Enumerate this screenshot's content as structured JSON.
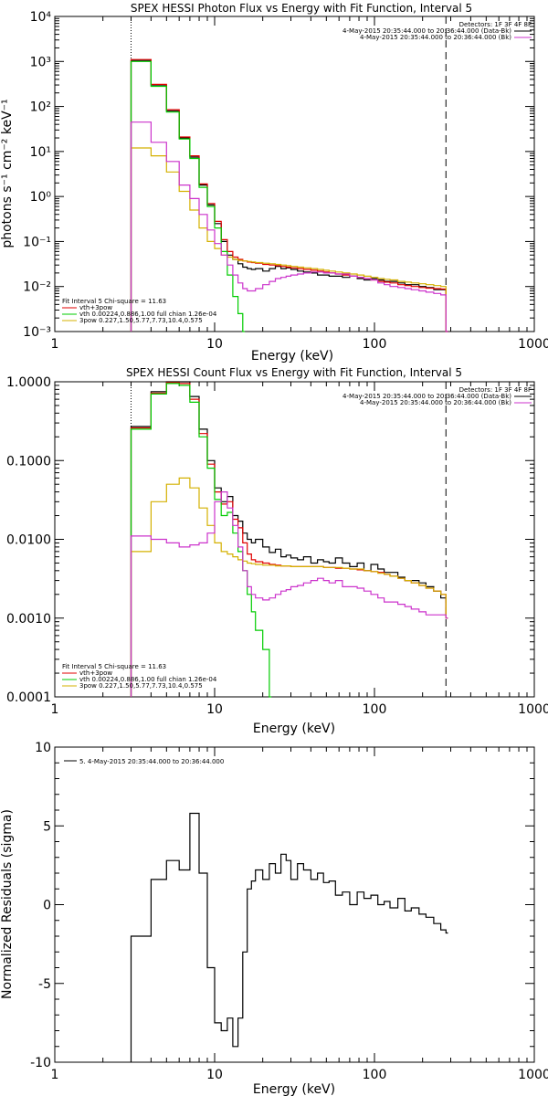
{
  "chart_data": [
    {
      "type": "line",
      "title": "SPEX HESSI Photon Flux vs Energy with Fit Function, Interval 5",
      "xlabel": "Energy (keV)",
      "ylabel": "photons s⁻¹ cm⁻² keV⁻¹",
      "x_scale": "log",
      "y_scale": "log",
      "xlim": [
        1,
        1000
      ],
      "ylim": [
        0.001,
        10000
      ],
      "x_ticks": [
        "1",
        "10",
        "100",
        "1000"
      ],
      "y_ticks": [
        "10⁻³",
        "10⁻²",
        "10⁻¹",
        "10⁰",
        "10¹",
        "10²",
        "10³",
        "10⁴"
      ],
      "legend_top_right": {
        "detectors": "Detectors: 1F 3F 4F 8F",
        "lines": [
          {
            "text": "4-May-2015 20:35:44.000 to 20:36:44.000 (Data-Bk)",
            "color": "#000000"
          },
          {
            "text": "4-May-2015 20:35:44.000 to 20:36:44.000 (Bk)",
            "color": "#cc33cc"
          }
        ]
      },
      "legend_bottom_left": {
        "header": "Fit Interval 5   Chi-square = 11.63",
        "lines": [
          {
            "text": "vth+3pow",
            "color": "#e00000"
          },
          {
            "text": "vth 0.00224,0.886,1.00  full chian 1.26e-04",
            "color": "#00cc00"
          },
          {
            "text": "3pow 0.227,1.50,5.77,7.73,10.4,0.575",
            "color": "#d4b000"
          }
        ]
      },
      "vlines": [
        3,
        280
      ],
      "series": [
        {
          "color": "#000000",
          "x": [
            3,
            4,
            5,
            6,
            7,
            8,
            9,
            10,
            11,
            12,
            13,
            14,
            15,
            16,
            17,
            18,
            20,
            22,
            24,
            26,
            28,
            30,
            33,
            36,
            40,
            44,
            48,
            52,
            57,
            63,
            70,
            78,
            86,
            95,
            105,
            115,
            125,
            140,
            155,
            170,
            190,
            210,
            235,
            260,
            280
          ],
          "values": [
            1050,
            290,
            80,
            20,
            7.5,
            1.8,
            0.65,
            0.25,
            0.1,
            0.05,
            0.04,
            0.032,
            0.027,
            0.025,
            0.024,
            0.025,
            0.022,
            0.025,
            0.028,
            0.025,
            0.026,
            0.024,
            0.022,
            0.021,
            0.02,
            0.018,
            0.018,
            0.017,
            0.017,
            0.016,
            0.017,
            0.015,
            0.014,
            0.015,
            0.014,
            0.013,
            0.013,
            0.012,
            0.011,
            0.011,
            0.01,
            0.0095,
            0.0085,
            0.0085,
            0.001
          ]
        },
        {
          "color": "#e00000",
          "x": [
            3,
            4,
            5,
            6,
            7,
            8,
            9,
            10,
            11,
            12,
            13,
            14,
            15,
            16,
            17,
            18,
            20,
            22,
            24,
            26,
            28,
            30,
            33,
            36,
            40,
            44,
            48,
            52,
            57,
            63,
            70,
            78,
            86,
            95,
            105,
            115,
            125,
            140,
            155,
            170,
            190,
            210,
            235,
            260,
            280
          ],
          "values": [
            1100,
            310,
            85,
            21,
            8,
            1.9,
            0.7,
            0.28,
            0.11,
            0.06,
            0.045,
            0.04,
            0.037,
            0.035,
            0.034,
            0.033,
            0.031,
            0.03,
            0.029,
            0.028,
            0.027,
            0.026,
            0.025,
            0.024,
            0.023,
            0.022,
            0.021,
            0.02,
            0.019,
            0.018,
            0.017,
            0.016,
            0.015,
            0.014,
            0.013,
            0.0125,
            0.012,
            0.011,
            0.0105,
            0.01,
            0.0095,
            0.0092,
            0.009,
            0.0088,
            0.001
          ]
        },
        {
          "color": "#00cc00",
          "x": [
            3,
            4,
            5,
            6,
            7,
            8,
            9,
            10,
            11,
            12,
            13,
            14,
            15
          ],
          "values": [
            1000,
            280,
            75,
            19,
            7,
            1.6,
            0.6,
            0.2,
            0.06,
            0.018,
            0.006,
            0.0025,
            0.001
          ]
        },
        {
          "color": "#d4b000",
          "x": [
            3,
            4,
            5,
            6,
            7,
            8,
            9,
            10,
            11,
            12,
            13,
            14,
            15,
            16,
            17,
            18,
            20,
            22,
            24,
            26,
            28,
            30,
            33,
            36,
            40,
            44,
            48,
            52,
            57,
            63,
            70,
            78,
            86,
            95,
            105,
            115,
            125,
            140,
            155,
            170,
            190,
            210,
            235,
            260,
            280
          ],
          "values": [
            12,
            8,
            3.5,
            1.3,
            0.5,
            0.2,
            0.1,
            0.07,
            0.05,
            0.045,
            0.04,
            0.038,
            0.037,
            0.036,
            0.035,
            0.034,
            0.033,
            0.032,
            0.031,
            0.03,
            0.029,
            0.028,
            0.027,
            0.026,
            0.025,
            0.024,
            0.023,
            0.022,
            0.021,
            0.02,
            0.019,
            0.018,
            0.017,
            0.016,
            0.015,
            0.0145,
            0.014,
            0.013,
            0.0125,
            0.012,
            0.0115,
            0.011,
            0.0105,
            0.01,
            0.001
          ]
        },
        {
          "color": "#cc33cc",
          "x": [
            3,
            4,
            5,
            6,
            7,
            8,
            9,
            10,
            11,
            12,
            13,
            14,
            15,
            16,
            17,
            18,
            20,
            22,
            24,
            26,
            28,
            30,
            33,
            36,
            40,
            44,
            48,
            52,
            57,
            63,
            70,
            78,
            86,
            95,
            105,
            115,
            125,
            140,
            155,
            170,
            190,
            210,
            235,
            260,
            280
          ],
          "values": [
            45,
            16,
            6,
            1.8,
            0.9,
            0.4,
            0.18,
            0.09,
            0.05,
            0.03,
            0.018,
            0.012,
            0.009,
            0.008,
            0.008,
            0.009,
            0.011,
            0.013,
            0.015,
            0.016,
            0.017,
            0.018,
            0.019,
            0.02,
            0.021,
            0.021,
            0.02,
            0.02,
            0.019,
            0.019,
            0.017,
            0.016,
            0.015,
            0.014,
            0.012,
            0.011,
            0.01,
            0.0095,
            0.009,
            0.0085,
            0.008,
            0.0075,
            0.007,
            0.0065,
            0.001
          ]
        }
      ]
    },
    {
      "type": "line",
      "title": "SPEX HESSI Count Flux vs Energy with Fit Function, Interval 5",
      "xlabel": "Energy (keV)",
      "ylabel": "",
      "x_scale": "log",
      "y_scale": "log",
      "xlim": [
        1,
        1000
      ],
      "ylim": [
        0.0001,
        1.0
      ],
      "x_ticks": [
        "1",
        "10",
        "100",
        "1000"
      ],
      "y_ticks": [
        "0.0001",
        "0.0010",
        "0.0100",
        "0.1000",
        "1.0000"
      ],
      "legend_top_right": {
        "detectors": "Detectors: 1F 3F 4F 8F",
        "lines": [
          {
            "text": "4-May-2015 20:35:44.000 to 20:36:44.000 (Data-Bk)",
            "color": "#000000"
          },
          {
            "text": "4-May-2015 20:35:44.000 to 20:36:44.000 (Bk)",
            "color": "#cc33cc"
          }
        ]
      },
      "legend_bottom_left": {
        "header": "Fit Interval 5   Chi-square = 11.63",
        "lines": [
          {
            "text": "vth+3pow",
            "color": "#e00000"
          },
          {
            "text": "vth 0.00224,0.886,1.00  full chian 1.26e-04",
            "color": "#00cc00"
          },
          {
            "text": "3pow 0.227,1.50,5.77,7.73,10.4,0.575",
            "color": "#d4b000"
          }
        ]
      },
      "vlines": [
        3,
        280
      ],
      "series": [
        {
          "color": "#000000",
          "x": [
            3,
            4,
            5,
            6,
            7,
            8,
            9,
            10,
            11,
            12,
            13,
            14,
            15,
            16,
            17,
            18,
            20,
            22,
            24,
            26,
            28,
            30,
            33,
            36,
            40,
            44,
            48,
            52,
            57,
            63,
            70,
            78,
            86,
            95,
            105,
            115,
            125,
            140,
            155,
            170,
            190,
            210,
            235,
            260,
            280
          ],
          "values": [
            0.27,
            0.75,
            1.0,
            1.0,
            0.65,
            0.25,
            0.1,
            0.045,
            0.03,
            0.035,
            0.02,
            0.017,
            0.012,
            0.01,
            0.009,
            0.01,
            0.008,
            0.0068,
            0.0075,
            0.006,
            0.0063,
            0.0058,
            0.0055,
            0.006,
            0.005,
            0.0055,
            0.0052,
            0.005,
            0.0058,
            0.005,
            0.0045,
            0.005,
            0.004,
            0.0048,
            0.0042,
            0.0038,
            0.0038,
            0.0033,
            0.003,
            0.003,
            0.0028,
            0.0025,
            0.0022,
            0.0018,
            0.001
          ]
        },
        {
          "color": "#e00000",
          "x": [
            3,
            4,
            5,
            6,
            7,
            8,
            9,
            10,
            11,
            12,
            13,
            14,
            15,
            16,
            17,
            18,
            20,
            22,
            24,
            26,
            28,
            30,
            33,
            36,
            40,
            44,
            48,
            52,
            57,
            63,
            70,
            78,
            86,
            95,
            105,
            115,
            125,
            140,
            155,
            170,
            190,
            210,
            235,
            260,
            280
          ],
          "values": [
            0.26,
            0.72,
            0.98,
            0.95,
            0.6,
            0.22,
            0.09,
            0.04,
            0.028,
            0.03,
            0.018,
            0.014,
            0.009,
            0.0065,
            0.0055,
            0.0052,
            0.005,
            0.0048,
            0.0047,
            0.0046,
            0.0046,
            0.0045,
            0.0045,
            0.0045,
            0.0045,
            0.0045,
            0.0044,
            0.0044,
            0.0043,
            0.0043,
            0.0042,
            0.0041,
            0.004,
            0.0039,
            0.0038,
            0.0036,
            0.0034,
            0.0032,
            0.003,
            0.0028,
            0.0026,
            0.0024,
            0.0022,
            0.002,
            0.001
          ]
        },
        {
          "color": "#00cc00",
          "x": [
            3,
            4,
            5,
            6,
            7,
            8,
            9,
            10,
            11,
            12,
            13,
            14,
            15,
            16,
            17,
            18,
            20,
            22
          ],
          "values": [
            0.25,
            0.7,
            0.95,
            0.9,
            0.55,
            0.2,
            0.08,
            0.032,
            0.02,
            0.022,
            0.012,
            0.007,
            0.004,
            0.002,
            0.0012,
            0.0007,
            0.0004,
            0.0001
          ]
        },
        {
          "color": "#d4b000",
          "x": [
            3,
            4,
            5,
            6,
            7,
            8,
            9,
            10,
            11,
            12,
            13,
            14,
            15,
            16,
            17,
            18,
            20,
            22,
            24,
            26,
            28,
            30,
            33,
            36,
            40,
            44,
            48,
            52,
            57,
            63,
            70,
            78,
            86,
            95,
            105,
            115,
            125,
            140,
            155,
            170,
            190,
            210,
            235,
            260,
            280
          ],
          "values": [
            0.007,
            0.03,
            0.05,
            0.06,
            0.045,
            0.025,
            0.015,
            0.009,
            0.007,
            0.0065,
            0.006,
            0.0055,
            0.0053,
            0.005,
            0.0049,
            0.0048,
            0.0047,
            0.0047,
            0.0046,
            0.0046,
            0.0046,
            0.0045,
            0.0045,
            0.0045,
            0.0045,
            0.0045,
            0.0044,
            0.0044,
            0.0044,
            0.0043,
            0.0042,
            0.0042,
            0.004,
            0.0039,
            0.0037,
            0.0036,
            0.0034,
            0.0032,
            0.003,
            0.0028,
            0.0026,
            0.0024,
            0.0022,
            0.002,
            0.001
          ]
        },
        {
          "color": "#cc33cc",
          "x": [
            3,
            4,
            5,
            6,
            7,
            8,
            9,
            10,
            11,
            12,
            13,
            14,
            15,
            16,
            17,
            18,
            20,
            22,
            24,
            26,
            28,
            30,
            33,
            36,
            40,
            44,
            48,
            52,
            57,
            63,
            70,
            78,
            86,
            95,
            105,
            115,
            125,
            140,
            155,
            170,
            190,
            210,
            235,
            260,
            280
          ],
          "values": [
            0.011,
            0.01,
            0.009,
            0.008,
            0.0085,
            0.009,
            0.012,
            0.03,
            0.04,
            0.025,
            0.015,
            0.008,
            0.004,
            0.0025,
            0.002,
            0.0018,
            0.0017,
            0.0018,
            0.002,
            0.0022,
            0.0023,
            0.0025,
            0.0026,
            0.0028,
            0.003,
            0.0032,
            0.003,
            0.0028,
            0.003,
            0.0025,
            0.0025,
            0.0024,
            0.0022,
            0.002,
            0.0018,
            0.0016,
            0.0016,
            0.0015,
            0.0014,
            0.0013,
            0.0012,
            0.0011,
            0.0011,
            0.0011,
            0.001
          ]
        }
      ]
    },
    {
      "type": "line",
      "title": "",
      "xlabel": "Energy (keV)",
      "ylabel": "Normalized Residuals (sigma)",
      "x_scale": "log",
      "y_scale": "linear",
      "xlim": [
        1,
        1000
      ],
      "ylim": [
        -10,
        10
      ],
      "x_ticks": [
        "1",
        "10",
        "100",
        "1000"
      ],
      "y_ticks": [
        "-10",
        "-5",
        "0",
        "5",
        "10"
      ],
      "legend_top_left": {
        "lines": [
          {
            "text": "5. 4-May-2015 20:35:44.000 to 20:36:44.000",
            "color": "#000000"
          }
        ]
      },
      "series": [
        {
          "color": "#000000",
          "x": [
            3,
            4,
            5,
            6,
            7,
            8,
            9,
            10,
            11,
            12,
            13,
            14,
            15,
            16,
            17,
            18,
            20,
            22,
            24,
            26,
            28,
            30,
            33,
            36,
            40,
            44,
            48,
            52,
            57,
            63,
            70,
            78,
            86,
            95,
            105,
            115,
            125,
            140,
            155,
            170,
            190,
            210,
            235,
            260,
            280
          ],
          "values": [
            -2.0,
            1.6,
            2.8,
            2.2,
            5.8,
            2.0,
            -4.0,
            -7.5,
            -8.0,
            -7.2,
            -9.0,
            -7.2,
            -3.0,
            1.0,
            1.5,
            2.2,
            1.6,
            2.6,
            2.0,
            3.2,
            2.8,
            1.6,
            2.6,
            2.2,
            1.6,
            2.0,
            1.4,
            1.5,
            0.6,
            0.8,
            0.0,
            0.8,
            0.4,
            0.6,
            0.0,
            0.2,
            -0.2,
            0.4,
            -0.4,
            -0.2,
            -0.6,
            -0.8,
            -1.2,
            -1.6,
            -1.8
          ]
        }
      ]
    }
  ]
}
